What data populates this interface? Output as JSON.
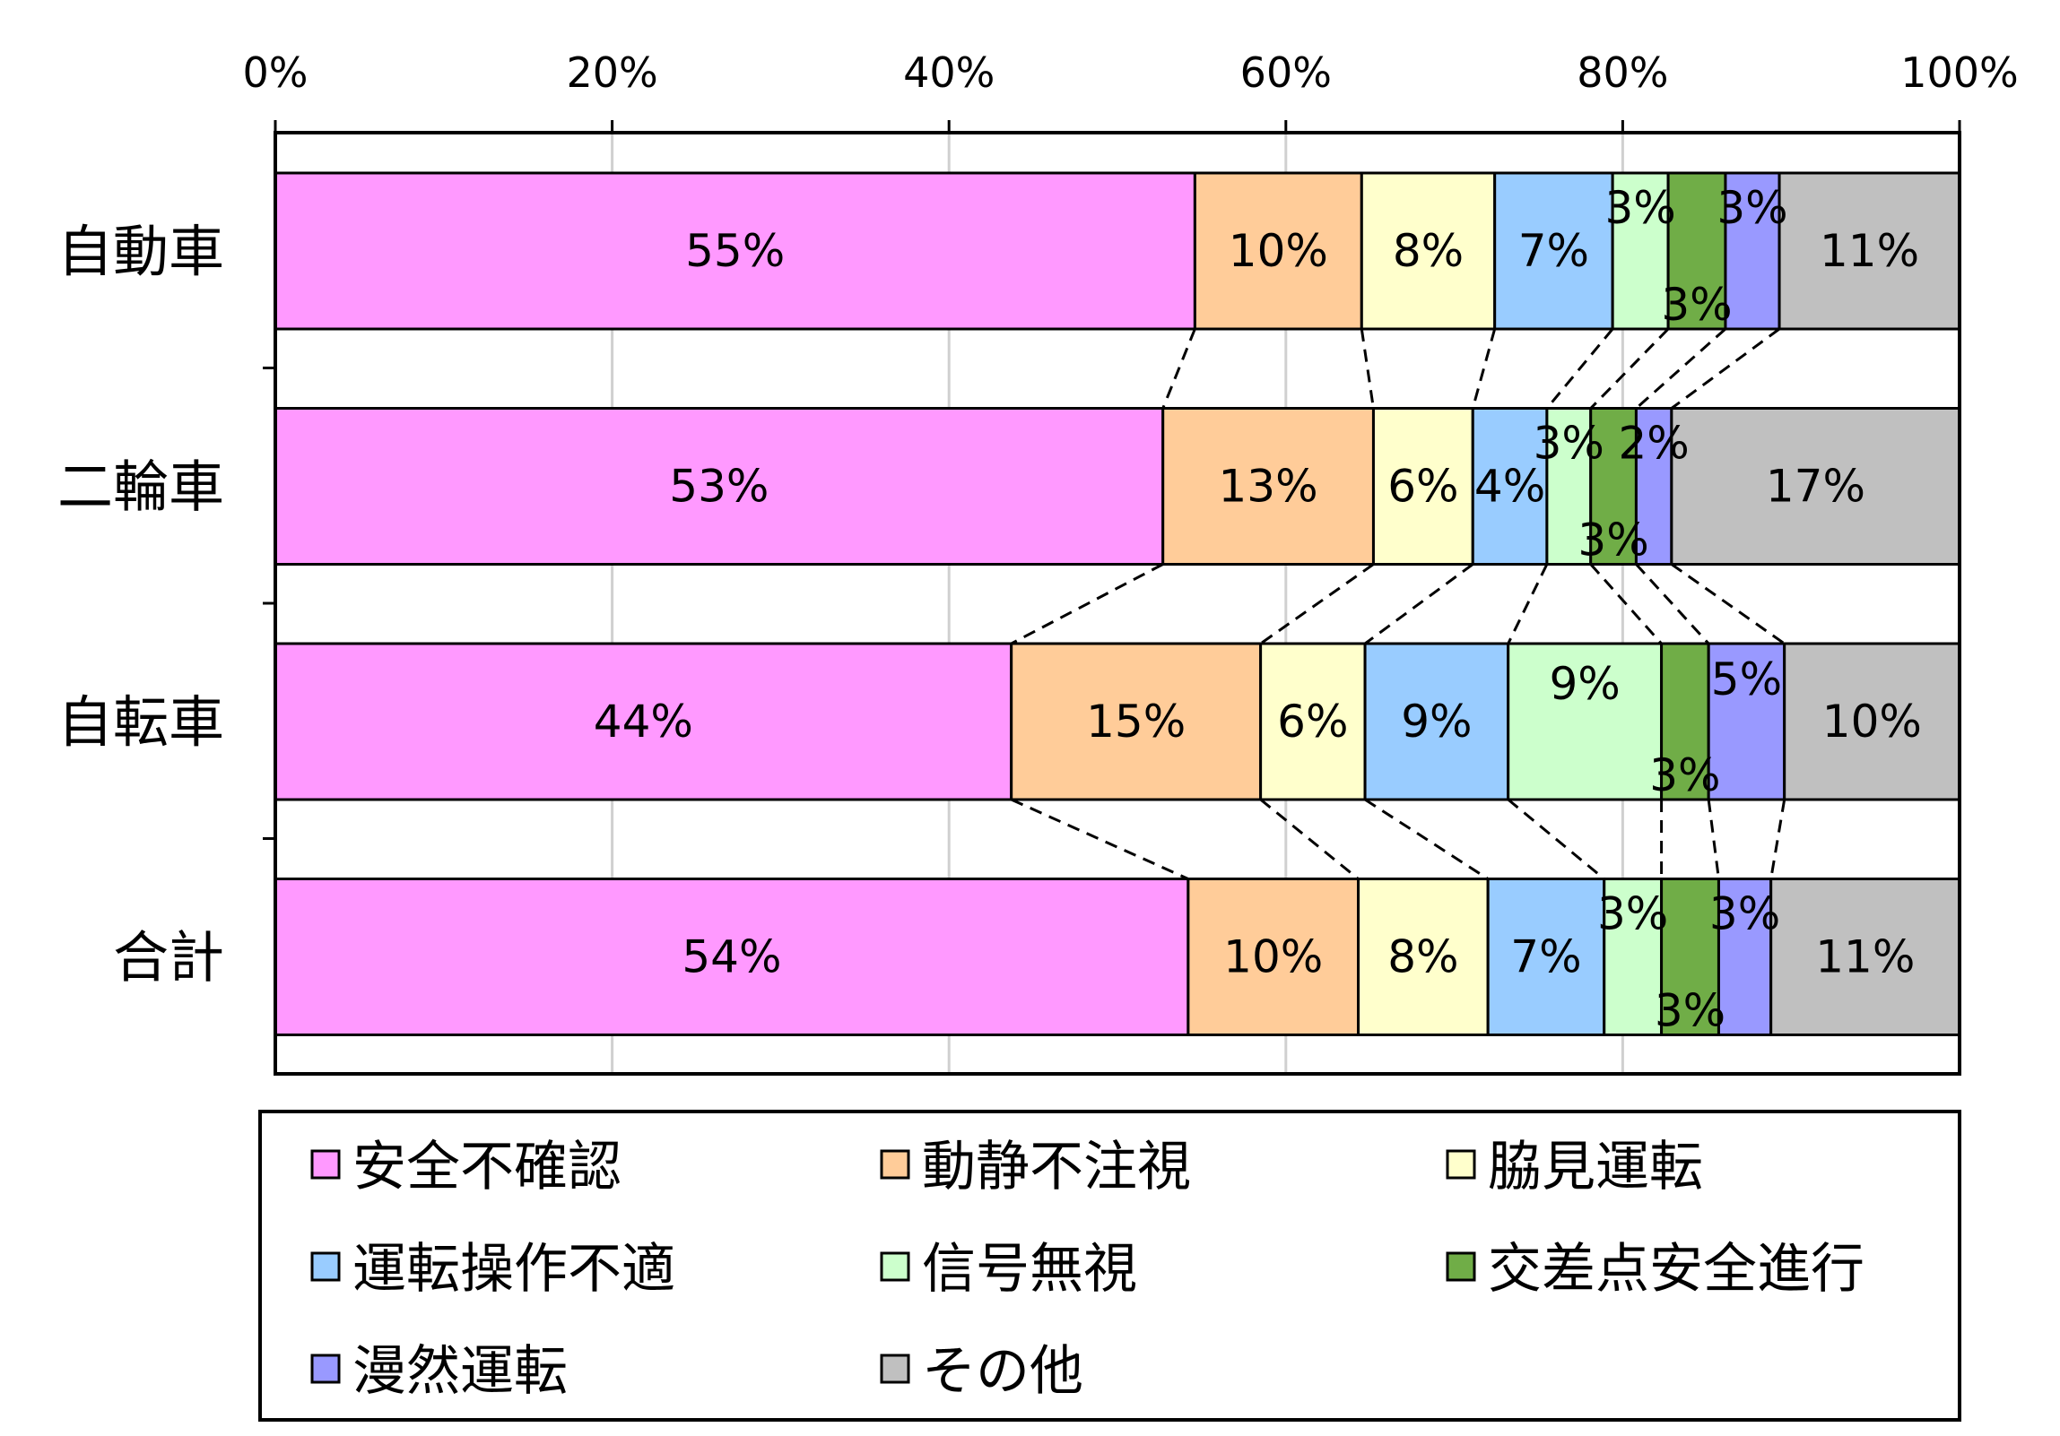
{
  "chart_data": {
    "type": "bar",
    "orientation": "horizontal",
    "stacked": "100%",
    "categories": [
      "自動車",
      "二輪車",
      "自転車",
      "合計"
    ],
    "xlim": [
      0,
      100
    ],
    "x_ticks": [
      "0%",
      "20%",
      "40%",
      "60%",
      "80%",
      "100%"
    ],
    "x_axis_position": "top",
    "grid": true,
    "legend_position": "bottom",
    "series_connectors": "dashed",
    "series": [
      {
        "name": "安全不確認",
        "color": "#FF99FF",
        "values": [
          54.6,
          52.7,
          43.7,
          54.2
        ],
        "labels": [
          "55%",
          "53%",
          "44%",
          "54%"
        ]
      },
      {
        "name": "動静不注視",
        "color": "#FFCC99",
        "values": [
          9.9,
          12.5,
          14.8,
          10.1
        ],
        "labels": [
          "10%",
          "13%",
          "15%",
          "10%"
        ]
      },
      {
        "name": "脇見運転",
        "color": "#FFFFCC",
        "values": [
          7.9,
          5.9,
          6.2,
          7.7
        ],
        "labels": [
          "8%",
          "6%",
          "6%",
          "8%"
        ]
      },
      {
        "name": "運転操作不適",
        "color": "#99CCFF",
        "values": [
          7.0,
          4.4,
          8.5,
          6.9
        ],
        "labels": [
          "7%",
          "4%",
          "9%",
          "7%"
        ]
      },
      {
        "name": "信号無視",
        "color": "#CCFFCC",
        "values": [
          3.3,
          2.6,
          9.1,
          3.4
        ],
        "labels": [
          "3%",
          "3%",
          "9%",
          "3%"
        ]
      },
      {
        "name": "交差点安全進行",
        "color": "#70AD47",
        "values": [
          3.4,
          2.7,
          2.8,
          3.4
        ],
        "labels": [
          "3%",
          "3%",
          "3%",
          "3%"
        ]
      },
      {
        "name": "漫然運転",
        "color": "#9999FF",
        "values": [
          3.2,
          2.1,
          4.5,
          3.1
        ],
        "labels": [
          "3%",
          "2%",
          "5%",
          "3%"
        ]
      },
      {
        "name": "その他",
        "color": "#C0C0C0",
        "values": [
          10.7,
          17.1,
          10.4,
          11.2
        ],
        "labels": [
          "11%",
          "17%",
          "10%",
          "11%"
        ]
      }
    ]
  }
}
